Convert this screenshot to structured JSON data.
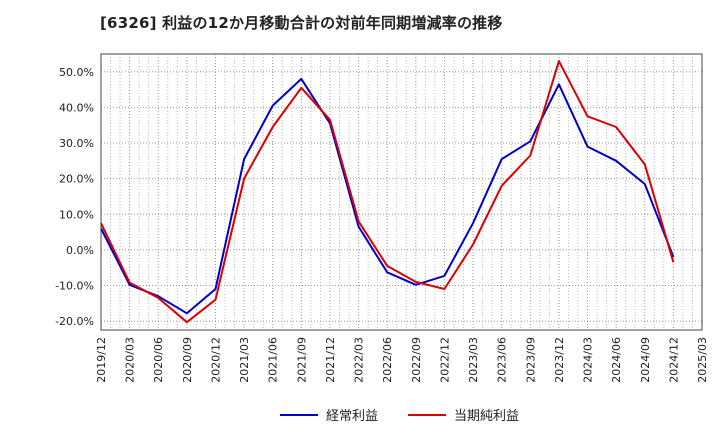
{
  "chart_data": {
    "type": "line",
    "title": "[6326]  利益の12か月移動合計の対前年同期増減率の推移",
    "xlabel": "",
    "ylabel": "",
    "ylim": [
      -22.5,
      55
    ],
    "yticks": [
      50,
      40,
      30,
      20,
      10,
      0,
      -10,
      -20
    ],
    "ytick_labels": [
      "50.0%",
      "40.0%",
      "30.0%",
      "20.0%",
      "10.0%",
      "0.0%",
      "-10.0%",
      "-20.0%"
    ],
    "x": [
      "2019/12",
      "2020/03",
      "2020/06",
      "2020/09",
      "2020/12",
      "2021/03",
      "2021/06",
      "2021/09",
      "2021/12",
      "2022/03",
      "2022/06",
      "2022/09",
      "2022/12",
      "2023/03",
      "2023/06",
      "2023/09",
      "2023/12",
      "2024/03",
      "2024/06",
      "2024/09",
      "2024/12",
      "2025/03"
    ],
    "grid": true,
    "legend_position": "bottom",
    "series": [
      {
        "name": "経常利益",
        "color": "#0000cc",
        "values": [
          6.0,
          -9.8,
          -13.0,
          -17.8,
          -11.0,
          25.5,
          40.5,
          48.0,
          35.5,
          6.5,
          -6.3,
          -9.8,
          -7.3,
          7.5,
          25.5,
          30.5,
          46.5,
          29.0,
          25.0,
          18.5,
          -2.0,
          null
        ]
      },
      {
        "name": "当期純利益",
        "color": "#dd0000",
        "values": [
          7.5,
          -9.2,
          -13.5,
          -20.3,
          -14.0,
          20.0,
          34.5,
          45.5,
          36.5,
          8.0,
          -4.5,
          -9.0,
          -11.0,
          1.5,
          18.0,
          26.5,
          53.0,
          37.5,
          34.5,
          24.0,
          -3.5,
          null
        ]
      }
    ]
  }
}
